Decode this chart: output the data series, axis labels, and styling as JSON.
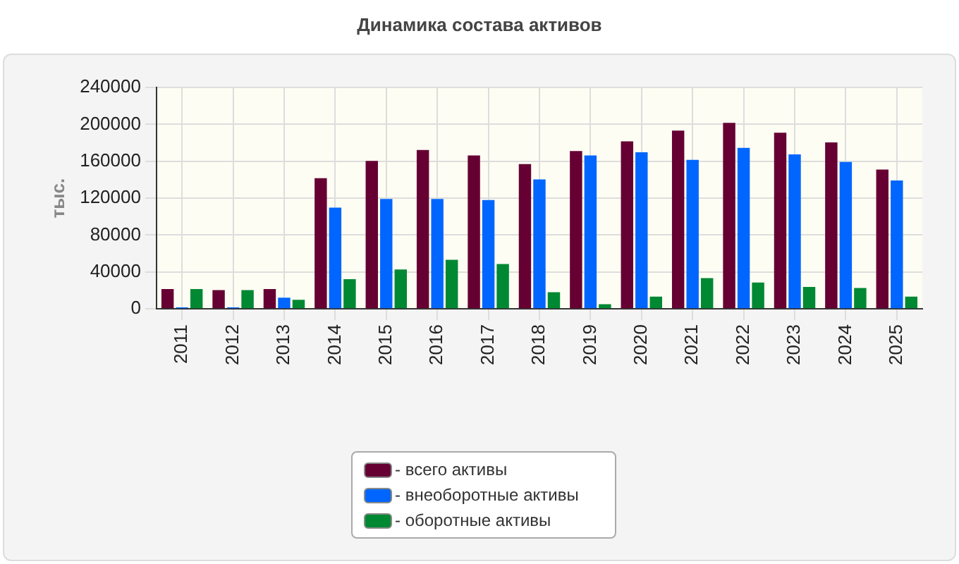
{
  "chart_data": {
    "type": "bar",
    "title": "Динамика состава активов",
    "ylabel": "тыс.",
    "categories": [
      "2011",
      "2012",
      "2013",
      "2014",
      "2015",
      "2016",
      "2017",
      "2018",
      "2019",
      "2020",
      "2021",
      "2022",
      "2023",
      "2024",
      "2025"
    ],
    "series": [
      {
        "name": "- всего активы",
        "color": "#660033",
        "values": [
          21600,
          20400,
          21600,
          141600,
          160400,
          172200,
          166300,
          156900,
          171000,
          181600,
          193300,
          201600,
          191000,
          180400,
          151000
        ]
      },
      {
        "name": "- внеоборотные активы",
        "color": "#0066ff",
        "values": [
          1600,
          1600,
          12200,
          109800,
          119200,
          119200,
          118000,
          140400,
          166300,
          169800,
          161600,
          174500,
          167500,
          159200,
          139200
        ]
      },
      {
        "name": "- оборотные активы",
        "color": "#008833",
        "values": [
          21600,
          20400,
          9800,
          32200,
          42700,
          53300,
          48600,
          18000,
          5100,
          13300,
          33300,
          28600,
          23900,
          22700,
          13300
        ]
      }
    ],
    "ylim": [
      0,
      240000
    ],
    "yticks": [
      0,
      40000,
      80000,
      120000,
      160000,
      200000,
      240000
    ],
    "grid": true,
    "legend": "bottom"
  }
}
